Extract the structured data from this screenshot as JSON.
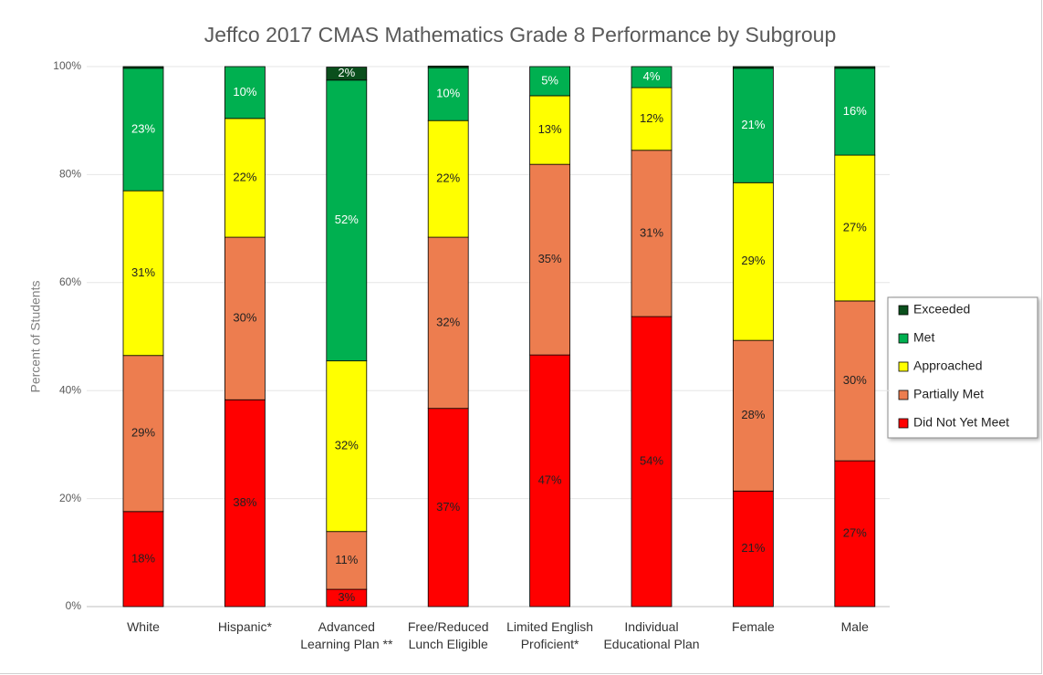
{
  "chart_data": {
    "type": "stacked_bar",
    "title": "Jeffco 2017 CMAS Mathematics Grade 8 Performance by Subgroup",
    "y_label": "Percent of Students",
    "categories": [
      "White",
      "Hispanic*",
      "Advanced Learning Plan **",
      "Free/Reduced Lunch Eligible",
      "Limited English Proficient*",
      "Individual Educational Plan",
      "Female",
      "Male"
    ],
    "ylim": [
      0,
      100
    ],
    "yticks": [
      {
        "value": 0,
        "label": "0%"
      },
      {
        "value": 20,
        "label": "20%"
      },
      {
        "value": 40,
        "label": "40%"
      },
      {
        "value": 60,
        "label": "60%"
      },
      {
        "value": 80,
        "label": "80%"
      },
      {
        "value": 100,
        "label": "100%"
      }
    ],
    "grid": true,
    "legend": "right",
    "series": [
      {
        "name": "Did Not Yet Meet",
        "color": "#ff0000",
        "label_color": "#222222",
        "values": [
          17.6,
          38.3,
          3.2,
          36.7,
          46.6,
          53.7,
          21.4,
          27.0
        ],
        "value_labels": [
          "18%",
          "38%",
          "3%",
          "37%",
          "47%",
          "54%",
          "21%",
          "27%"
        ]
      },
      {
        "name": "Partially Met",
        "color": "#ed7d4f",
        "label_color": "#222222",
        "values": [
          28.9,
          30.1,
          10.7,
          31.7,
          35.3,
          30.8,
          27.9,
          29.6
        ],
        "value_labels": [
          "29%",
          "30%",
          "11%",
          "32%",
          "35%",
          "31%",
          "28%",
          "30%"
        ]
      },
      {
        "name": "Approached",
        "color": "#ffff00",
        "label_color": "#222222",
        "values": [
          30.5,
          22.0,
          31.6,
          21.6,
          12.7,
          11.6,
          29.2,
          27.0
        ],
        "value_labels": [
          "31%",
          "22%",
          "32%",
          "22%",
          "13%",
          "12%",
          "29%",
          "27%"
        ]
      },
      {
        "name": "Met",
        "color": "#00b050",
        "label_color": "#ffffff",
        "values": [
          22.7,
          9.6,
          52.0,
          9.8,
          5.4,
          3.9,
          21.2,
          16.1
        ],
        "value_labels": [
          "23%",
          "10%",
          "52%",
          "10%",
          "5%",
          "4%",
          "21%",
          "16%"
        ]
      },
      {
        "name": "Exceeded",
        "color": "#0a4f1c",
        "label_color": "#ffffff",
        "values": [
          0.3,
          0,
          2.4,
          0.3,
          0,
          0,
          0.3,
          0.3
        ],
        "value_labels": [
          null,
          null,
          "2%",
          null,
          null,
          null,
          null,
          null
        ]
      }
    ]
  }
}
